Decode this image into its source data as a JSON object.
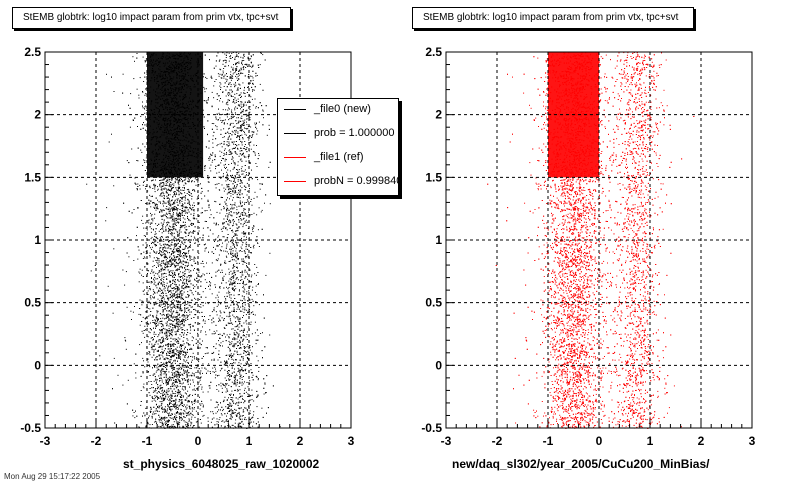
{
  "titles": {
    "left": "StEMB globtrk: log10 impact param from prim vtx, tpc+svt",
    "right": "StEMB globtrk: log10 impact param from prim vtx, tpc+svt"
  },
  "xlabels": {
    "left": "st_physics_6048025_raw_1020002",
    "right": "new/daq_sl302/year_2005/CuCu200_MinBias/"
  },
  "footer": "Mon Aug 29 15:17:22 2005",
  "legend": {
    "entries": [
      {
        "label": "_file0 (new)",
        "color": "#000000"
      },
      {
        "label": "prob = 1.000000",
        "color": "#000000"
      },
      {
        "label": "_file1 (ref)",
        "color": "#ff0000"
      },
      {
        "label": "probN = 0.999840",
        "color": "#ff0000"
      }
    ]
  },
  "chart_data": [
    {
      "type": "scatter",
      "series": [
        {
          "name": "_file0 (new)",
          "color": "#000000"
        }
      ],
      "xlim": [
        -3,
        3
      ],
      "ylim": [
        -0.5,
        2.5
      ],
      "xticks": [
        -3,
        -2,
        -1,
        0,
        1,
        2,
        3
      ],
      "yticks": [
        -0.5,
        0,
        0.5,
        1,
        1.5,
        2,
        2.5
      ],
      "grid": true,
      "density_bands": [
        {
          "x_center": -0.5,
          "x_width": 0.55,
          "weight": 0.6
        },
        {
          "x_center": 0.75,
          "x_width": 0.45,
          "weight": 0.3
        },
        {
          "x_center": -0.3,
          "x_width": 1.3,
          "weight": 0.1
        }
      ],
      "dense_region": {
        "x": [
          -1.0,
          0.1
        ],
        "y": [
          1.5,
          2.5
        ]
      }
    },
    {
      "type": "scatter",
      "series": [
        {
          "name": "_file1 (ref)",
          "color": "#ff0000"
        }
      ],
      "xlim": [
        -3,
        3
      ],
      "ylim": [
        -0.5,
        2.5
      ],
      "xticks": [
        -3,
        -2,
        -1,
        0,
        1,
        2,
        3
      ],
      "yticks": [
        -0.5,
        0,
        0.5,
        1,
        1.5,
        2,
        2.5
      ],
      "grid": true,
      "density_bands": [
        {
          "x_center": -0.5,
          "x_width": 0.55,
          "weight": 0.6
        },
        {
          "x_center": 0.75,
          "x_width": 0.45,
          "weight": 0.3
        },
        {
          "x_center": -0.3,
          "x_width": 1.3,
          "weight": 0.1
        }
      ],
      "dense_region": {
        "x": [
          -1.0,
          0.0
        ],
        "y": [
          1.5,
          2.5
        ]
      }
    }
  ]
}
